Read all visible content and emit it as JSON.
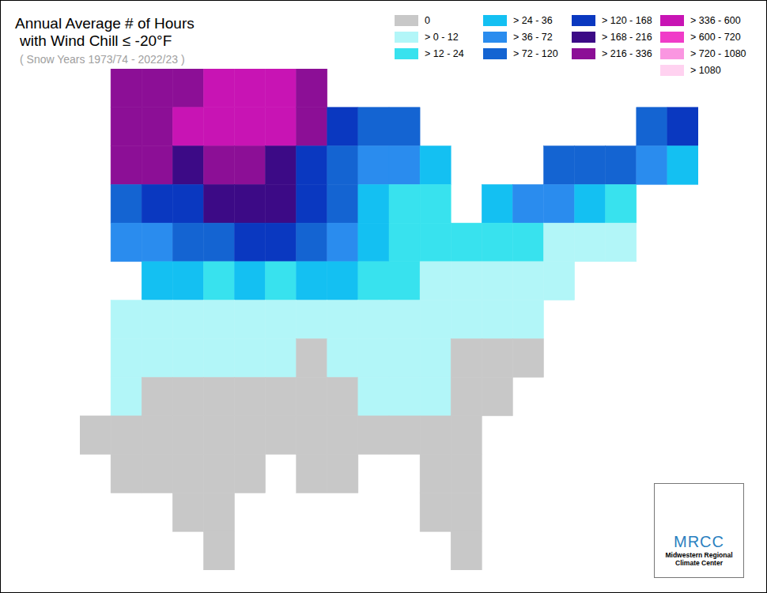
{
  "chart_data": {
    "type": "map",
    "title": [
      "Annual Average # of Hours",
      "with Wind Chill ≤ -20°F"
    ],
    "subtitle": "( Snow Years 1973/74 - 2022/23 )",
    "legend": "top-right",
    "tick_labels": false,
    "xlim": [
      -106,
      -66
    ],
    "ylim": [
      24,
      50
    ],
    "classes": [
      {
        "label": "0",
        "max": 0,
        "color": "#c8c8c8"
      },
      {
        "label": "> 0 - 12",
        "min": 0,
        "max": 12,
        "color": "#b2f6f8"
      },
      {
        "label": "> 12 - 24",
        "min": 12,
        "max": 24,
        "color": "#38e2ee"
      },
      {
        "label": "> 24 - 36",
        "min": 24,
        "max": 36,
        "color": "#14c0f2"
      },
      {
        "label": "> 36 - 72",
        "min": 36,
        "max": 72,
        "color": "#2a8cee"
      },
      {
        "label": "> 72 - 120",
        "min": 72,
        "max": 120,
        "color": "#1464d2"
      },
      {
        "label": "> 120 - 168",
        "min": 120,
        "max": 168,
        "color": "#0a38c0"
      },
      {
        "label": "> 168 - 216",
        "min": 168,
        "max": 216,
        "color": "#3c0a86"
      },
      {
        "label": "> 216 - 336",
        "min": 216,
        "max": 336,
        "color": "#8c0f96"
      },
      {
        "label": "> 336 - 600",
        "min": 336,
        "max": 600,
        "color": "#c814b4"
      },
      {
        "label": "> 600 - 720",
        "min": 600,
        "max": 720,
        "color": "#f03cc8"
      },
      {
        "label": "> 720 - 1080",
        "min": 720,
        "max": 1080,
        "color": "#fa96e1"
      },
      {
        "label": "> 1080",
        "min": 1080,
        "color": "#ffd2f0"
      }
    ],
    "cells": {
      "lon_edges": [
        -106,
        -104,
        -102,
        -100,
        -98,
        -96,
        -94,
        -92,
        -90,
        -88,
        -86,
        -84,
        -82,
        -80,
        -78,
        -76,
        -74,
        -72,
        -70,
        -68,
        -66
      ],
      "lat_edges": [
        50,
        48,
        46,
        44,
        42,
        40,
        38,
        36,
        34,
        32,
        30,
        28,
        26,
        24
      ],
      "values": [
        [
          null,
          276,
          276,
          276,
          468,
          468,
          468,
          276,
          null,
          null,
          null,
          null,
          null,
          null,
          null,
          null,
          null,
          null,
          null,
          null
        ],
        [
          null,
          276,
          276,
          468,
          468,
          468,
          468,
          276,
          144,
          96,
          96,
          null,
          null,
          null,
          null,
          null,
          null,
          null,
          96,
          144
        ],
        [
          null,
          276,
          276,
          192,
          276,
          276,
          192,
          144,
          96,
          54,
          54,
          30,
          null,
          null,
          null,
          96,
          96,
          96,
          54,
          30
        ],
        [
          null,
          96,
          144,
          144,
          192,
          192,
          192,
          144,
          96,
          30,
          18,
          18,
          null,
          30,
          54,
          54,
          30,
          18,
          null,
          null
        ],
        [
          null,
          54,
          54,
          96,
          96,
          144,
          144,
          96,
          54,
          30,
          18,
          18,
          18,
          18,
          18,
          6,
          6,
          6,
          null,
          null
        ],
        [
          null,
          null,
          30,
          30,
          18,
          30,
          18,
          30,
          30,
          18,
          18,
          6,
          6,
          6,
          6,
          6,
          null,
          null,
          null,
          null
        ],
        [
          null,
          6,
          6,
          6,
          6,
          6,
          6,
          6,
          6,
          6,
          6,
          6,
          6,
          6,
          6,
          null,
          null,
          null,
          null,
          null
        ],
        [
          null,
          6,
          6,
          6,
          6,
          6,
          6,
          0,
          6,
          6,
          6,
          6,
          0,
          0,
          0,
          null,
          null,
          null,
          null,
          null
        ],
        [
          null,
          6,
          0,
          0,
          0,
          0,
          0,
          0,
          0,
          6,
          6,
          6,
          0,
          0,
          null,
          null,
          null,
          null,
          null,
          null
        ],
        [
          0,
          0,
          0,
          0,
          0,
          0,
          0,
          0,
          0,
          0,
          0,
          0,
          0,
          null,
          null,
          null,
          null,
          null,
          null,
          null
        ],
        [
          null,
          0,
          0,
          0,
          0,
          0,
          null,
          0,
          0,
          null,
          null,
          0,
          0,
          null,
          null,
          null,
          null,
          null,
          null,
          null
        ],
        [
          null,
          null,
          null,
          0,
          0,
          null,
          null,
          null,
          null,
          null,
          null,
          0,
          0,
          null,
          null,
          null,
          null,
          null,
          null,
          null
        ],
        [
          null,
          null,
          null,
          null,
          0,
          null,
          null,
          null,
          null,
          null,
          null,
          null,
          0,
          null,
          null,
          null,
          null,
          null,
          null,
          null
        ]
      ]
    },
    "logo": {
      "name": "MRCC",
      "text": "Midwestern Regional Climate Center"
    }
  }
}
